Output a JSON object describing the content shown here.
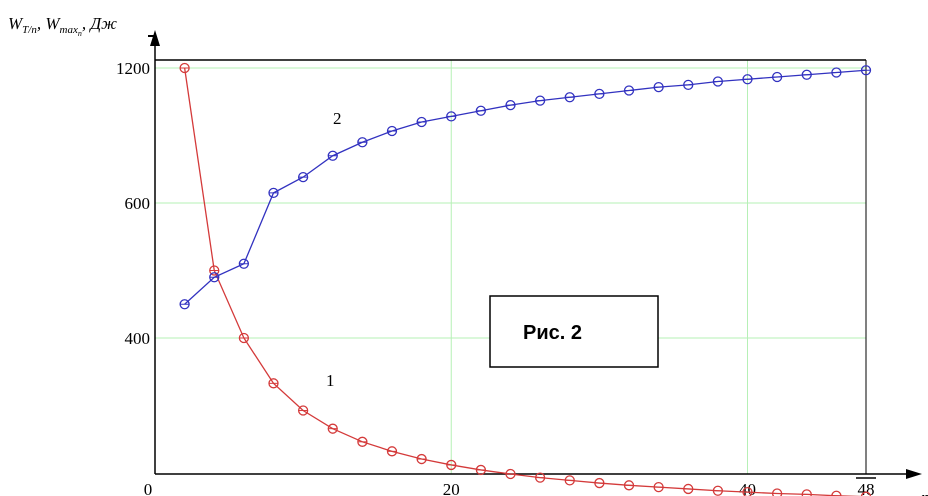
{
  "chart_data": {
    "type": "line",
    "y_axis_label": {
      "w1": "W",
      "w1_sub": "T/n",
      "sep1": ", ",
      "w2": "W",
      "w2_sub": "max",
      "w2_sub2": "n",
      "sep2": ", ",
      "unit": "Дж"
    },
    "x_axis_label": "n",
    "x_ticks": [
      "0",
      "20",
      "40",
      "48"
    ],
    "x_tick_values": [
      0,
      20,
      40,
      48
    ],
    "y_ticks": [
      "400",
      "600",
      "1200"
    ],
    "y_tick_values": [
      400,
      600,
      1200
    ],
    "xlim": [
      0,
      48
    ],
    "grid": true,
    "grid_color": "#b6f0b6",
    "series": [
      {
        "name": "1",
        "color": "#d43a3a",
        "x": [
          2,
          4,
          6,
          8,
          10,
          12,
          14,
          16,
          18,
          20,
          22,
          24,
          26,
          28,
          30,
          32,
          34,
          36,
          38,
          40,
          42,
          44,
          46,
          48
        ],
        "y": [
          1200,
          500,
          400,
          300,
          240,
          200,
          171,
          150,
          133,
          120,
          109,
          100,
          92,
          86,
          80,
          75,
          71,
          67,
          63,
          60,
          57,
          55,
          52,
          50
        ]
      },
      {
        "name": "2",
        "color": "#3232c0",
        "x": [
          2,
          4,
          6,
          8,
          10,
          12,
          14,
          16,
          18,
          20,
          22,
          24,
          26,
          28,
          30,
          32,
          34,
          36,
          38,
          40,
          42,
          44,
          46,
          48
        ],
        "y": [
          450,
          490,
          510,
          645,
          715,
          810,
          870,
          920,
          960,
          985,
          1010,
          1035,
          1055,
          1070,
          1085,
          1100,
          1115,
          1125,
          1140,
          1150,
          1160,
          1170,
          1180,
          1190
        ]
      }
    ],
    "series_labels": [
      "1",
      "2"
    ],
    "annotation": "Рис. 2"
  }
}
